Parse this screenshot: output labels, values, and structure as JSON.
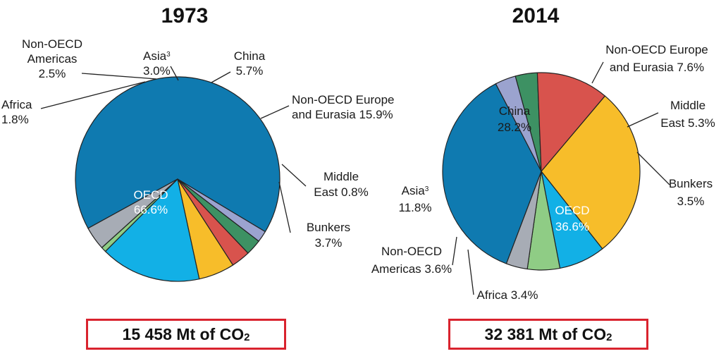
{
  "chart_data": [
    {
      "type": "pie",
      "title": "1973",
      "total": {
        "text": "15 458 Mt of CO",
        "subscript": "2"
      },
      "slices": [
        {
          "name": "OECD",
          "value": 66.6,
          "color": "#0f7ab0",
          "label": [
            "OECD",
            "66.6%"
          ],
          "label_inside": true
        },
        {
          "name": "Africa",
          "value": 1.8,
          "color": "#9ba3cf",
          "label": [
            "Africa",
            "1.8%"
          ]
        },
        {
          "name": "Non-OECD Americas",
          "value": 2.5,
          "color": "#3d9163",
          "label": [
            "Non-OECD",
            "Americas",
            "2.5%"
          ]
        },
        {
          "name": "Asia",
          "value": 3.0,
          "color": "#d8534d",
          "label": [
            "Asia",
            "3.0%"
          ],
          "superscript": "3"
        },
        {
          "name": "China",
          "value": 5.7,
          "color": "#f7bd2a",
          "label": [
            "China",
            "5.7%"
          ]
        },
        {
          "name": "Non-OECD Europe and Eurasia",
          "value": 15.9,
          "color": "#12b0e6",
          "label": [
            "Non-OECD Europe",
            "and Eurasia 15.9%"
          ]
        },
        {
          "name": "Middle East",
          "value": 0.8,
          "color": "#8fcc85",
          "label": [
            "Middle",
            "East 0.8%"
          ]
        },
        {
          "name": "Bunkers",
          "value": 3.7,
          "color": "#a7acb5",
          "label": [
            "Bunkers",
            "3.7%"
          ]
        }
      ]
    },
    {
      "type": "pie",
      "title": "2014",
      "total": {
        "text": "32 381 Mt of CO",
        "subscript": "2"
      },
      "slices": [
        {
          "name": "China",
          "value": 28.2,
          "color": "#f7bd2a",
          "label": [
            "China",
            "28.2%"
          ],
          "label_inside": true
        },
        {
          "name": "Non-OECD Europe and Eurasia",
          "value": 7.6,
          "color": "#12b0e6",
          "label": [
            "Non-OECD Europe",
            "and Eurasia 7.6%"
          ]
        },
        {
          "name": "Middle East",
          "value": 5.3,
          "color": "#8fcc85",
          "label": [
            "Middle",
            "East 5.3%"
          ]
        },
        {
          "name": "Bunkers",
          "value": 3.5,
          "color": "#a7acb5",
          "label": [
            "Bunkers",
            "3.5%"
          ]
        },
        {
          "name": "OECD",
          "value": 36.6,
          "color": "#0f7ab0",
          "label": [
            "OECD",
            "36.6%"
          ],
          "label_inside": true
        },
        {
          "name": "Africa",
          "value": 3.4,
          "color": "#9ba3cf",
          "label": [
            "Africa 3.4%"
          ]
        },
        {
          "name": "Non-OECD Americas",
          "value": 3.6,
          "color": "#3d9163",
          "label": [
            "Non-OECD",
            "Americas 3.6%"
          ]
        },
        {
          "name": "Asia",
          "value": 11.8,
          "color": "#d8534d",
          "label": [
            "Asia",
            "11.8%"
          ],
          "superscript": "3"
        }
      ]
    }
  ]
}
